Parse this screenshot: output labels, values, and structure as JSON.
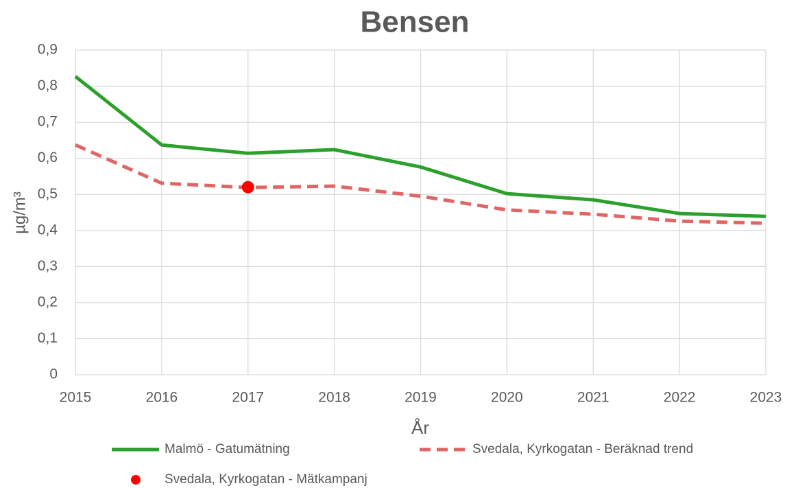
{
  "chart_data": {
    "type": "line",
    "title": "Bensen",
    "x_label": "År",
    "y_label": "µg/m³",
    "x": [
      2015,
      2016,
      2017,
      2018,
      2019,
      2020,
      2021,
      2022,
      2023
    ],
    "xlim": [
      2015,
      2023
    ],
    "xticks": [
      2015,
      2016,
      2017,
      2018,
      2019,
      2020,
      2021,
      2022,
      2023
    ],
    "ylim": [
      0,
      0.9
    ],
    "yticks": [
      0,
      {
        "value": 0.1,
        "label": "0,1"
      },
      {
        "value": 0.2,
        "label": "0,2"
      },
      {
        "value": 0.3,
        "label": "0,3"
      },
      {
        "value": 0.4,
        "label": "0,4"
      },
      {
        "value": 0.5,
        "label": "0,5"
      },
      {
        "value": 0.6,
        "label": "0,6"
      },
      {
        "value": 0.7,
        "label": "0,7"
      },
      {
        "value": 0.8,
        "label": "0,8"
      },
      {
        "value": 0.9,
        "label": "0,9"
      }
    ],
    "grid": true,
    "legend": "bottom",
    "series": [
      {
        "name": "Malmö - Gatumätning",
        "color": "#2ca02c",
        "style": "solid",
        "values": [
          0.827,
          0.637,
          0.614,
          0.624,
          0.576,
          0.502,
          0.485,
          0.447,
          0.439
        ]
      },
      {
        "name": "Svedala, Kyrkogatan - Beräknad trend",
        "color": "#e06666",
        "style": "dashed",
        "values": [
          0.637,
          0.531,
          0.519,
          0.523,
          0.495,
          0.457,
          0.445,
          0.426,
          0.42
        ]
      },
      {
        "name": "Svedala, Kyrkogatan - Mätkampanj",
        "color": "#ff0000",
        "style": "marker",
        "values": [
          null,
          null,
          0.52,
          null,
          null,
          null,
          null,
          null,
          null
        ]
      }
    ]
  }
}
